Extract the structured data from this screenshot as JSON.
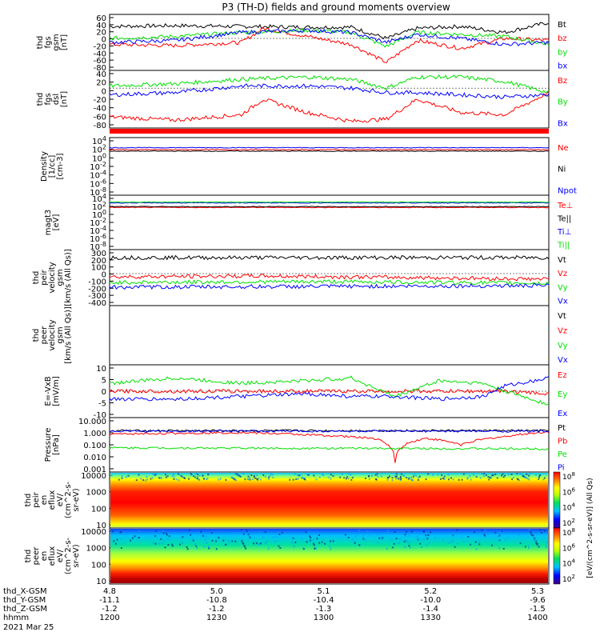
{
  "title": "P3 (TH-D) fields and ground moments overview",
  "colors": {
    "black": "#000000",
    "red": "#ff0000",
    "green": "#00e000",
    "blue": "#0000ff"
  },
  "chart_data": [
    {
      "type": "line",
      "panel": "fgs_gsm",
      "ylabel": [
        "thd",
        "fgs",
        "gsm",
        "[nT]"
      ],
      "ylim": [
        -80,
        60
      ],
      "yticks": [
        "60",
        "40",
        "20",
        "0",
        "-20",
        "-40",
        "-60",
        "-80"
      ],
      "legend": [
        "Bt",
        "bz",
        "by",
        "bx"
      ],
      "series": [
        {
          "name": "Bt",
          "color": "#000000",
          "x": [
            0,
            0.15,
            0.3,
            0.45,
            0.55,
            0.63,
            0.7,
            0.8,
            0.9,
            1
          ],
          "y": [
            30,
            32,
            30,
            28,
            28,
            0,
            25,
            30,
            15,
            40
          ]
        },
        {
          "name": "bz",
          "color": "#ff0000",
          "x": [
            0,
            0.15,
            0.3,
            0.35,
            0.45,
            0.55,
            0.63,
            0.7,
            0.8,
            0.9,
            1
          ],
          "y": [
            -15,
            -18,
            -10,
            25,
            5,
            -15,
            -60,
            -5,
            -25,
            0,
            -5
          ]
        },
        {
          "name": "by",
          "color": "#00e000",
          "x": [
            0,
            0.15,
            0.3,
            0.45,
            0.55,
            0.63,
            0.7,
            0.8,
            0.9,
            1
          ],
          "y": [
            0,
            5,
            15,
            20,
            15,
            -20,
            15,
            10,
            5,
            -15
          ]
        },
        {
          "name": "bx",
          "color": "#0000ff",
          "x": [
            0,
            0.15,
            0.3,
            0.45,
            0.55,
            0.63,
            0.7,
            0.8,
            0.9,
            1
          ],
          "y": [
            -10,
            -5,
            15,
            20,
            15,
            -10,
            10,
            0,
            -15,
            -10
          ]
        }
      ]
    },
    {
      "type": "line",
      "panel": "fgs_dsl",
      "ylabel": [
        "thd",
        "fgs",
        "dsl",
        "[nT]"
      ],
      "ylim": [
        -90,
        40
      ],
      "yticks": [
        "40",
        "20",
        "0",
        "-20",
        "-40",
        "-60",
        "-80"
      ],
      "legend": [
        "Bz",
        "By",
        "Bx"
      ],
      "series": [
        {
          "name": "Bz",
          "color": "#ff0000",
          "x": [
            0,
            0.15,
            0.3,
            0.35,
            0.45,
            0.55,
            0.63,
            0.7,
            0.8,
            0.9,
            1
          ],
          "y": [
            -65,
            -72,
            -60,
            -25,
            -55,
            -75,
            -70,
            -25,
            -55,
            -60,
            -10
          ]
        },
        {
          "name": "By",
          "color": "#00e000",
          "x": [
            0,
            0.15,
            0.3,
            0.45,
            0.55,
            0.63,
            0.7,
            0.8,
            0.9,
            1
          ],
          "y": [
            5,
            10,
            20,
            25,
            20,
            0,
            25,
            25,
            15,
            -10
          ]
        },
        {
          "name": "Bx",
          "color": "#0000ff",
          "x": [
            0,
            0.15,
            0.3,
            0.45,
            0.55,
            0.63,
            0.7,
            0.8,
            0.9,
            1
          ],
          "y": [
            -15,
            -10,
            5,
            5,
            0,
            -10,
            -10,
            -15,
            -20,
            -15
          ]
        }
      ]
    },
    {
      "type": "line",
      "panel": "density",
      "ylabel": [
        "Density",
        "[1/cc]",
        "[cm-3]"
      ],
      "log": true,
      "ylim": [
        1e-08,
        10000.0
      ],
      "yticks": [
        "10^4",
        "10^2",
        "10^0",
        "10^-2",
        "10^-4",
        "10^-6",
        "10^-8"
      ],
      "legend": [
        "Ne",
        "Ni",
        "Npot"
      ],
      "series": [
        {
          "name": "Ne",
          "color": "#ff0000",
          "x": [
            0,
            1
          ],
          "y": [
            30,
            30
          ]
        },
        {
          "name": "Ni",
          "color": "#000000",
          "x": [
            0,
            1
          ],
          "y": [
            15,
            15
          ]
        },
        {
          "name": "Npot",
          "color": "#0000ff",
          "x": [
            0,
            1
          ],
          "y": [
            80,
            80
          ]
        }
      ]
    },
    {
      "type": "line",
      "panel": "temperature",
      "ylabel": [
        "magt3",
        "[eV]"
      ],
      "log": true,
      "ylim": [
        1e-08,
        10000.0
      ],
      "yticks": [
        "10^4",
        "10^2",
        "10^0",
        "10^-2",
        "10^-4",
        "10^-6",
        "10^-8"
      ],
      "legend": [
        "Te⊥",
        "Te||",
        "Ti⊥",
        "Ti||"
      ],
      "series": [
        {
          "name": "Te⊥",
          "color": "#ff0000",
          "x": [
            0,
            1
          ],
          "y": [
            20,
            20
          ]
        },
        {
          "name": "Te||",
          "color": "#000000",
          "x": [
            0,
            1
          ],
          "y": [
            30,
            30
          ]
        },
        {
          "name": "Ti⊥",
          "color": "#0000ff",
          "x": [
            0,
            1
          ],
          "y": [
            200,
            200
          ]
        },
        {
          "name": "Ti||",
          "color": "#00e000",
          "x": [
            0,
            1
          ],
          "y": [
            300,
            300
          ]
        }
      ]
    },
    {
      "type": "line",
      "panel": "peir_velocity",
      "ylabel": [
        "thd",
        "peir",
        "velocity",
        "gsm",
        "[km/s (All Qs)]"
      ],
      "ylim": [
        -400,
        300
      ],
      "yticks": [
        "300",
        "200",
        "100",
        "0",
        "-100",
        "-200",
        "-300",
        "-400"
      ],
      "legend": [
        "Vt",
        "Vz",
        "Vy",
        "Vx"
      ],
      "series": [
        {
          "name": "Vt",
          "color": "#000000",
          "x": [
            0,
            0.5,
            1
          ],
          "y": [
            200,
            200,
            200
          ]
        },
        {
          "name": "Vz",
          "color": "#ff0000",
          "x": [
            0,
            0.35,
            0.7,
            1
          ],
          "y": [
            -40,
            -30,
            -50,
            -70
          ]
        },
        {
          "name": "Vy",
          "color": "#00e000",
          "x": [
            0,
            0.5,
            1
          ],
          "y": [
            -110,
            -100,
            -120
          ]
        },
        {
          "name": "Vx",
          "color": "#0000ff",
          "x": [
            0,
            0.5,
            1
          ],
          "y": [
            -170,
            -160,
            -150
          ]
        }
      ]
    },
    {
      "type": "line",
      "panel": "peer_velocity",
      "ylabel": [
        "thd",
        "peer",
        "velocity",
        "gsm",
        "[km/s (All Qs)]"
      ],
      "legend": [
        "Vt",
        "Vz",
        "Vy",
        "Vx"
      ],
      "series": []
    },
    {
      "type": "line",
      "panel": "efield",
      "ylabel": [
        "E=-VxB",
        "[mV/m]"
      ],
      "ylim": [
        -10,
        10
      ],
      "yticks": [
        "10",
        "5",
        "0",
        "-5",
        "-10"
      ],
      "legend": [
        "Ez",
        "Ey",
        "Ex"
      ],
      "series": [
        {
          "name": "Ez",
          "color": "#ff0000",
          "x": [
            0,
            0.3,
            0.55,
            0.75,
            0.9,
            1
          ],
          "y": [
            0,
            0,
            0,
            0,
            0,
            -1
          ]
        },
        {
          "name": "Ey",
          "color": "#00e000",
          "x": [
            0,
            0.15,
            0.3,
            0.45,
            0.55,
            0.65,
            0.75,
            0.85,
            0.9,
            1
          ],
          "y": [
            3,
            5,
            3,
            4,
            5,
            -2,
            4,
            3,
            0,
            -5
          ]
        },
        {
          "name": "Ex",
          "color": "#0000ff",
          "x": [
            0,
            0.15,
            0.3,
            0.45,
            0.55,
            0.65,
            0.75,
            0.85,
            0.9,
            1
          ],
          "y": [
            -3,
            -3,
            -2,
            -1,
            -2,
            -2,
            -3,
            -2,
            2,
            5
          ]
        }
      ]
    },
    {
      "type": "line",
      "panel": "pressure",
      "ylabel": [
        "Pressure",
        "[nPa]"
      ],
      "log": true,
      "ylim": [
        0.001,
        10
      ],
      "yticks": [
        "10.000",
        "1.000",
        "0.100",
        "0.010",
        "0.001"
      ],
      "legend": [
        "Pt",
        "Pb",
        "Pe",
        "Pi"
      ],
      "series": [
        {
          "name": "Pt",
          "color": "#000000",
          "x": [
            0,
            1
          ],
          "y": [
            1.1,
            1.1
          ]
        },
        {
          "name": "Pb",
          "color": "#ff0000",
          "x": [
            0,
            0.3,
            0.6,
            0.65,
            0.72,
            0.8,
            0.9,
            1
          ],
          "y": [
            0.6,
            0.8,
            0.3,
            0.005,
            0.3,
            0.1,
            0.4,
            0.9
          ]
        },
        {
          "name": "Pe",
          "color": "#00e000",
          "x": [
            0,
            1
          ],
          "y": [
            0.06,
            0.05
          ]
        },
        {
          "name": "Pi",
          "color": "#0000ff",
          "x": [
            0,
            1
          ],
          "y": [
            1.0,
            1.0
          ]
        }
      ]
    },
    {
      "type": "heatmap",
      "panel": "peir_en_eflux",
      "ylabel": [
        "thd",
        "peir",
        "en",
        "eflux",
        "eV/",
        "(cm^2-s-",
        "sr-eV)"
      ],
      "log": true,
      "ylim": [
        5,
        30000
      ],
      "yticks": [
        "10000",
        "1000",
        "100",
        "10"
      ]
    },
    {
      "type": "heatmap",
      "panel": "peer_en_eflux",
      "ylabel": [
        "thd",
        "peer",
        "en",
        "eflux",
        "eV/",
        "(cm^2-s-",
        "sr-eV)"
      ],
      "log": true,
      "ylim": [
        5,
        30000
      ],
      "yticks": [
        "10000",
        "1000",
        "100",
        "10"
      ]
    }
  ],
  "colorbar": {
    "label": "[eV/(cm^2-s-sr-eV)] (All Qs)",
    "top_ticks": [
      "10^8",
      "10^6",
      "10^4",
      "10^2"
    ],
    "bottom_ticks": [
      "10^8",
      "10^6",
      "10^4",
      "10^2"
    ]
  },
  "xaxis": {
    "row_labels": [
      "thd_X-GSM",
      "thd_Y-GSM",
      "thd_Z-GSM",
      "hhmm",
      "2021 Mar 25"
    ],
    "ticks": [
      {
        "x": 4.8,
        "y": -11.1,
        "z": -1.2,
        "hhmm": "1200"
      },
      {
        "x": 5.0,
        "y": -10.8,
        "z": -1.2,
        "hhmm": "1230"
      },
      {
        "x": 5.1,
        "y": -10.4,
        "z": -1.3,
        "hhmm": "1300"
      },
      {
        "x": 5.2,
        "y": -10.0,
        "z": -1.4,
        "hhmm": "1330"
      },
      {
        "x": 5.3,
        "y": -9.6,
        "z": -1.5,
        "hhmm": "1400"
      }
    ]
  }
}
